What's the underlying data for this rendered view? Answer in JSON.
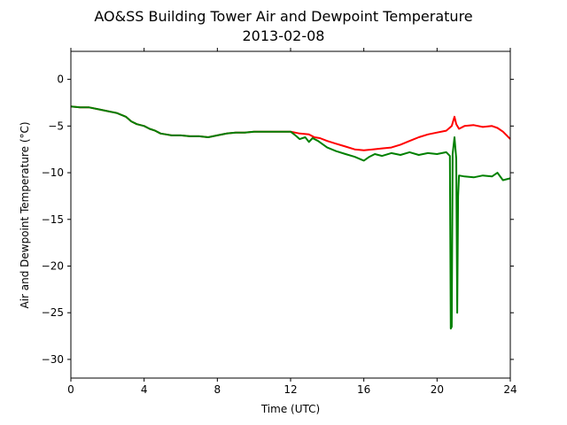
{
  "chart_data": {
    "type": "line",
    "title": "AO&SS Building Tower Air and Dewpoint Temperature",
    "subtitle": "2013-02-08",
    "xlabel": "Time (UTC)",
    "ylabel": "Air and Dewpoint Temperature (°C)",
    "xlim": [
      0,
      24
    ],
    "ylim": [
      -32,
      3
    ],
    "xticks": [
      0,
      4,
      8,
      12,
      16,
      20,
      24
    ],
    "yticks": [
      0,
      -5,
      -10,
      -15,
      -20,
      -25,
      -30
    ],
    "grid": false,
    "series": [
      {
        "color": "#ff0000",
        "x": [
          0,
          0.5,
          1,
          1.5,
          2,
          2.5,
          3,
          3.3,
          3.6,
          4,
          4.3,
          4.6,
          4.9,
          5.2,
          5.5,
          6,
          6.5,
          7,
          7.5,
          8,
          8.5,
          9,
          9.5,
          10,
          10.5,
          11,
          11.5,
          12,
          12.5,
          13,
          13.3,
          13.6,
          14,
          14.5,
          15,
          15.5,
          16,
          16.5,
          17,
          17.5,
          18,
          18.5,
          19,
          19.5,
          20,
          20.5,
          20.8,
          20.95,
          21.05,
          21.2,
          21.5,
          22,
          22.5,
          23,
          23.3,
          23.6,
          24
        ],
        "y": [
          -2.9,
          -3.0,
          -3.0,
          -3.2,
          -3.4,
          -3.6,
          -4.0,
          -4.5,
          -4.8,
          -5.0,
          -5.3,
          -5.5,
          -5.8,
          -5.9,
          -6.0,
          -6.0,
          -6.1,
          -6.1,
          -6.2,
          -6.0,
          -5.8,
          -5.7,
          -5.7,
          -5.6,
          -5.6,
          -5.6,
          -5.6,
          -5.6,
          -5.8,
          -5.9,
          -6.2,
          -6.3,
          -6.6,
          -6.9,
          -7.2,
          -7.5,
          -7.6,
          -7.5,
          -7.4,
          -7.3,
          -7.0,
          -6.6,
          -6.2,
          -5.9,
          -5.7,
          -5.5,
          -5.0,
          -4.0,
          -4.8,
          -5.3,
          -5.0,
          -4.9,
          -5.1,
          -5.0,
          -5.2,
          -5.6,
          -6.4
        ]
      },
      {
        "color": "#008000",
        "x": [
          0,
          0.5,
          1,
          1.5,
          2,
          2.5,
          3,
          3.3,
          3.6,
          4,
          4.3,
          4.6,
          4.9,
          5.2,
          5.5,
          6,
          6.5,
          7,
          7.5,
          8,
          8.5,
          9,
          9.5,
          10,
          10.5,
          11,
          11.5,
          12,
          12.2,
          12.5,
          12.8,
          13,
          13.2,
          13.5,
          14,
          14.5,
          15,
          15.5,
          16,
          16.3,
          16.6,
          17,
          17.5,
          18,
          18.5,
          19,
          19.5,
          20,
          20.5,
          20.7,
          20.75,
          20.8,
          20.85,
          20.95,
          21.05,
          21.1,
          21.15,
          21.2,
          21.5,
          22,
          22.5,
          23,
          23.3,
          23.6,
          24
        ],
        "y": [
          -2.9,
          -3.0,
          -3.0,
          -3.2,
          -3.4,
          -3.6,
          -4.0,
          -4.5,
          -4.8,
          -5.0,
          -5.3,
          -5.5,
          -5.8,
          -5.9,
          -6.0,
          -6.0,
          -6.1,
          -6.1,
          -6.2,
          -6.0,
          -5.8,
          -5.7,
          -5.7,
          -5.6,
          -5.6,
          -5.6,
          -5.6,
          -5.6,
          -5.9,
          -6.4,
          -6.2,
          -6.7,
          -6.3,
          -6.6,
          -7.3,
          -7.7,
          -8.0,
          -8.3,
          -8.7,
          -8.3,
          -8.0,
          -8.2,
          -7.9,
          -8.1,
          -7.8,
          -8.1,
          -7.9,
          -8.0,
          -7.8,
          -8.2,
          -26.7,
          -26.5,
          -8.0,
          -6.2,
          -8.5,
          -25.0,
          -12.5,
          -10.3,
          -10.4,
          -10.5,
          -10.3,
          -10.4,
          -10.0,
          -10.8,
          -10.6
        ]
      }
    ]
  }
}
